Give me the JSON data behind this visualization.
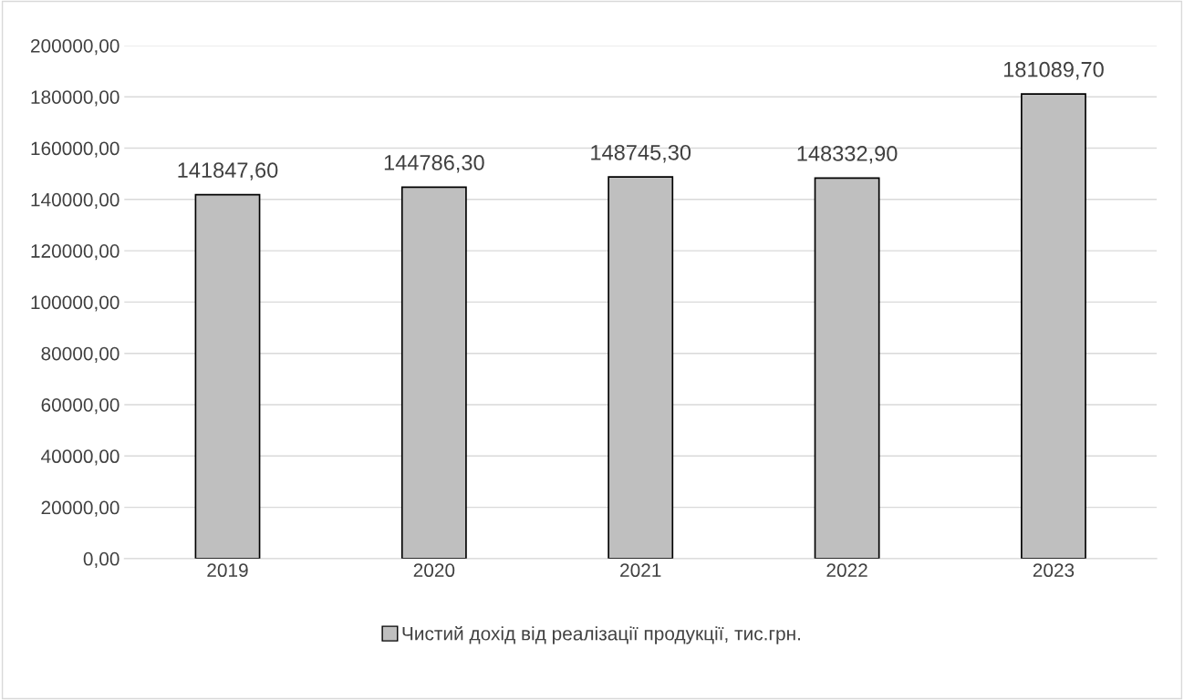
{
  "chart_data": {
    "type": "bar",
    "categories": [
      "2019",
      "2020",
      "2021",
      "2022",
      "2023"
    ],
    "series": [
      {
        "name": "Чистий дохід від реалізації продукції, тис.грн.",
        "color": "#bfbfbf",
        "values": [
          141847.6,
          144786.3,
          148745.3,
          148332.9,
          181089.7
        ],
        "value_labels": [
          "141847,60",
          "144786,30",
          "148745,30",
          "148332,90",
          "181089,70"
        ]
      }
    ],
    "ylim": [
      0,
      200000
    ],
    "yticks": [
      {
        "value": 0,
        "label": "0,00"
      },
      {
        "value": 20000,
        "label": "20000,00"
      },
      {
        "value": 40000,
        "label": "40000,00"
      },
      {
        "value": 60000,
        "label": "60000,00"
      },
      {
        "value": 80000,
        "label": "80000,00"
      },
      {
        "value": 100000,
        "label": "100000,00"
      },
      {
        "value": 120000,
        "label": "120000,00"
      },
      {
        "value": 140000,
        "label": "140000,00"
      },
      {
        "value": 160000,
        "label": "160000,00"
      },
      {
        "value": 180000,
        "label": "180000,00"
      },
      {
        "value": 200000,
        "label": "200000,00"
      }
    ],
    "grid": "y",
    "legend": "bottom"
  }
}
